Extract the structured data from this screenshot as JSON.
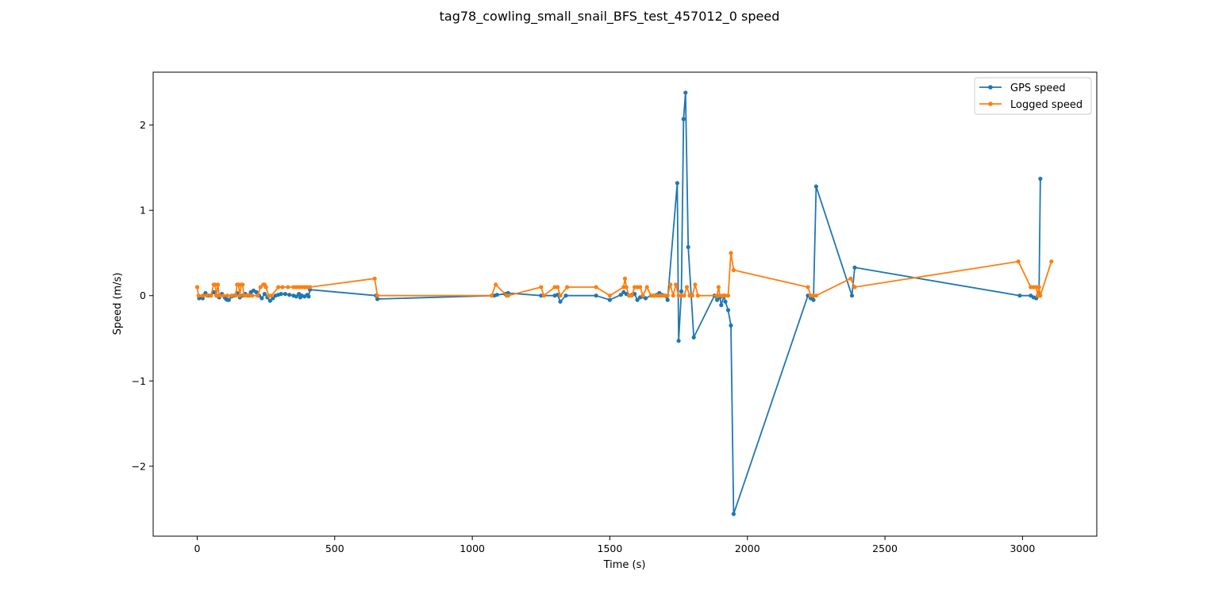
{
  "chart_data": {
    "type": "line",
    "title": "tag78_cowling_small_snail_BFS_test_457012_0 speed",
    "xlabel": "Time (s)",
    "ylabel": "Speed (m/s)",
    "xlim": [
      -160,
      3270
    ],
    "ylim": [
      -2.82,
      2.62
    ],
    "xticks": [
      0,
      500,
      1000,
      1500,
      2000,
      2500,
      3000
    ],
    "xtick_labels": [
      "0",
      "500",
      "1000",
      "1500",
      "2000",
      "2500",
      "3000"
    ],
    "yticks": [
      -2,
      -1,
      0,
      1,
      2
    ],
    "ytick_labels": [
      "−2",
      "−1",
      "0",
      "1",
      "2"
    ],
    "grid": false,
    "legend_position": "top-right",
    "series": [
      {
        "name": "GPS speed",
        "color": "#1f77b4",
        "points": [
          [
            7,
            -0.03
          ],
          [
            20,
            -0.03
          ],
          [
            30,
            0.03
          ],
          [
            40,
            0
          ],
          [
            50,
            0
          ],
          [
            60,
            0.04
          ],
          [
            70,
            0
          ],
          [
            80,
            -0.02
          ],
          [
            90,
            0.02
          ],
          [
            100,
            -0.02
          ],
          [
            105,
            -0.04
          ],
          [
            110,
            -0.05
          ],
          [
            115,
            -0.05
          ],
          [
            125,
            -0.01
          ],
          [
            135,
            0
          ],
          [
            145,
            0.03
          ],
          [
            155,
            -0.02
          ],
          [
            165,
            0
          ],
          [
            175,
            0.02
          ],
          [
            185,
            0
          ],
          [
            195,
            0.04
          ],
          [
            205,
            0.06
          ],
          [
            215,
            0.04
          ],
          [
            225,
            0
          ],
          [
            235,
            -0.03
          ],
          [
            245,
            0.02
          ],
          [
            255,
            -0.02
          ],
          [
            265,
            -0.06
          ],
          [
            275,
            -0.03
          ],
          [
            285,
            0
          ],
          [
            295,
            0.01
          ],
          [
            305,
            0.02
          ],
          [
            320,
            0.02
          ],
          [
            335,
            0.01
          ],
          [
            350,
            0
          ],
          [
            360,
            -0.01
          ],
          [
            370,
            0.02
          ],
          [
            375,
            -0.02
          ],
          [
            380,
            0
          ],
          [
            390,
            -0.01
          ],
          [
            400,
            0.01
          ],
          [
            405,
            -0.01
          ],
          [
            410,
            0.07
          ],
          [
            650,
            0
          ],
          [
            655,
            -0.04
          ],
          [
            1080,
            0
          ],
          [
            1090,
            0.01
          ],
          [
            1120,
            0.02
          ],
          [
            1130,
            0.03
          ],
          [
            1250,
            0
          ],
          [
            1300,
            0
          ],
          [
            1310,
            0.01
          ],
          [
            1320,
            -0.07
          ],
          [
            1340,
            0
          ],
          [
            1450,
            0
          ],
          [
            1500,
            -0.05
          ],
          [
            1540,
            0.01
          ],
          [
            1550,
            0.04
          ],
          [
            1560,
            0.02
          ],
          [
            1570,
            0
          ],
          [
            1580,
            0.01
          ],
          [
            1590,
            0.02
          ],
          [
            1600,
            -0.05
          ],
          [
            1610,
            -0.02
          ],
          [
            1630,
            -0.03
          ],
          [
            1650,
            0
          ],
          [
            1660,
            0
          ],
          [
            1670,
            0.01
          ],
          [
            1680,
            0.03
          ],
          [
            1690,
            0.01
          ],
          [
            1700,
            0
          ],
          [
            1710,
            -0.05
          ],
          [
            1745,
            1.32
          ],
          [
            1750,
            -0.53
          ],
          [
            1760,
            0.05
          ],
          [
            1768,
            2.07
          ],
          [
            1775,
            2.38
          ],
          [
            1785,
            0.57
          ],
          [
            1805,
            -0.49
          ],
          [
            1880,
            0
          ],
          [
            1890,
            -0.05
          ],
          [
            1900,
            -0.02
          ],
          [
            1905,
            -0.11
          ],
          [
            1915,
            0
          ],
          [
            1920,
            -0.07
          ],
          [
            1930,
            -0.17
          ],
          [
            1940,
            -0.35
          ],
          [
            1950,
            -2.56
          ],
          [
            2220,
            0
          ],
          [
            2230,
            -0.03
          ],
          [
            2240,
            -0.05
          ],
          [
            2250,
            1.28
          ],
          [
            2380,
            0
          ],
          [
            2390,
            0.33
          ],
          [
            2990,
            0
          ],
          [
            3030,
            0
          ],
          [
            3040,
            -0.02
          ],
          [
            3050,
            -0.03
          ],
          [
            3060,
            0
          ],
          [
            3065,
            1.37
          ]
        ]
      },
      {
        "name": "Logged speed",
        "color": "#ff7f0e",
        "points": [
          [
            0,
            0.1
          ],
          [
            5,
            0
          ],
          [
            20,
            0
          ],
          [
            35,
            0
          ],
          [
            50,
            0
          ],
          [
            60,
            0.13
          ],
          [
            65,
            0.13
          ],
          [
            70,
            0
          ],
          [
            75,
            0.13
          ],
          [
            80,
            0
          ],
          [
            95,
            0
          ],
          [
            110,
            0
          ],
          [
            125,
            0
          ],
          [
            140,
            0
          ],
          [
            145,
            0.13
          ],
          [
            150,
            0.13
          ],
          [
            155,
            0
          ],
          [
            160,
            0.13
          ],
          [
            165,
            0.13
          ],
          [
            170,
            0
          ],
          [
            180,
            0
          ],
          [
            190,
            0
          ],
          [
            200,
            0
          ],
          [
            220,
            0
          ],
          [
            230,
            0.1
          ],
          [
            240,
            0.13
          ],
          [
            245,
            0.13
          ],
          [
            250,
            0.1
          ],
          [
            260,
            0
          ],
          [
            270,
            0
          ],
          [
            295,
            0.1
          ],
          [
            310,
            0.1
          ],
          [
            330,
            0.1
          ],
          [
            350,
            0.1
          ],
          [
            360,
            0.1
          ],
          [
            370,
            0.1
          ],
          [
            380,
            0.1
          ],
          [
            390,
            0.1
          ],
          [
            400,
            0.1
          ],
          [
            410,
            0.1
          ],
          [
            645,
            0.2
          ],
          [
            655,
            0
          ],
          [
            1070,
            0
          ],
          [
            1085,
            0.13
          ],
          [
            1125,
            0
          ],
          [
            1130,
            0
          ],
          [
            1250,
            0.1
          ],
          [
            1260,
            0
          ],
          [
            1300,
            0.1
          ],
          [
            1310,
            0.1
          ],
          [
            1320,
            0
          ],
          [
            1345,
            0.1
          ],
          [
            1450,
            0.1
          ],
          [
            1500,
            0
          ],
          [
            1550,
            0.1
          ],
          [
            1555,
            0.2
          ],
          [
            1560,
            0.1
          ],
          [
            1570,
            0
          ],
          [
            1580,
            0
          ],
          [
            1590,
            0.1
          ],
          [
            1600,
            0.1
          ],
          [
            1610,
            0.1
          ],
          [
            1620,
            0
          ],
          [
            1635,
            0.1
          ],
          [
            1650,
            0
          ],
          [
            1660,
            0
          ],
          [
            1670,
            0
          ],
          [
            1680,
            0
          ],
          [
            1690,
            0
          ],
          [
            1700,
            0
          ],
          [
            1710,
            0
          ],
          [
            1720,
            0.13
          ],
          [
            1730,
            0
          ],
          [
            1740,
            0.13
          ],
          [
            1750,
            0
          ],
          [
            1760,
            0
          ],
          [
            1770,
            0
          ],
          [
            1780,
            0.1
          ],
          [
            1790,
            0
          ],
          [
            1800,
            0
          ],
          [
            1810,
            0.13
          ],
          [
            1820,
            0
          ],
          [
            1890,
            0
          ],
          [
            1895,
            0.1
          ],
          [
            1900,
            0
          ],
          [
            1910,
            0
          ],
          [
            1920,
            0
          ],
          [
            1930,
            0
          ],
          [
            1940,
            0.5
          ],
          [
            1950,
            0.3
          ],
          [
            2220,
            0.1
          ],
          [
            2230,
            0
          ],
          [
            2240,
            0
          ],
          [
            2250,
            0
          ],
          [
            2375,
            0.2
          ],
          [
            2390,
            0.1
          ],
          [
            2985,
            0.4
          ],
          [
            3030,
            0.1
          ],
          [
            3040,
            0.1
          ],
          [
            3050,
            0.1
          ],
          [
            3055,
            0
          ],
          [
            3060,
            0.1
          ],
          [
            3065,
            0
          ],
          [
            3105,
            0.4
          ]
        ]
      }
    ]
  }
}
